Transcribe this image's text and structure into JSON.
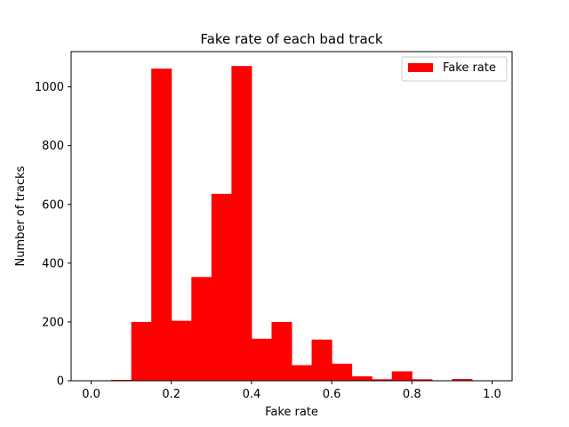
{
  "chart_data": {
    "type": "bar",
    "title": "Fake rate of each bad track",
    "xlabel": "Fake rate",
    "ylabel": "Number of tracks",
    "xlim": [
      -0.05,
      1.05
    ],
    "ylim": [
      0,
      1120
    ],
    "xticks": [
      0.0,
      0.2,
      0.4,
      0.6,
      0.8,
      1.0
    ],
    "xtick_labels": [
      "0.0",
      "0.2",
      "0.4",
      "0.6",
      "0.8",
      "1.0"
    ],
    "yticks": [
      0,
      200,
      400,
      600,
      800,
      1000
    ],
    "ytick_labels": [
      "0",
      "200",
      "400",
      "600",
      "800",
      "1000"
    ],
    "bin_edges": [
      0.0,
      0.05,
      0.1,
      0.15,
      0.2,
      0.25,
      0.3,
      0.35,
      0.4,
      0.45,
      0.5,
      0.55,
      0.6,
      0.65,
      0.7,
      0.75,
      0.8,
      0.85,
      0.9,
      0.95,
      1.0
    ],
    "values": [
      0,
      3,
      200,
      1062,
      204,
      353,
      636,
      1071,
      143,
      200,
      53,
      140,
      58,
      15,
      5,
      32,
      5,
      0,
      6,
      0
    ],
    "series": [
      {
        "name": "Fake rate",
        "color": "#ff0000"
      }
    ],
    "legend_position": "upper right",
    "grid": false
  }
}
